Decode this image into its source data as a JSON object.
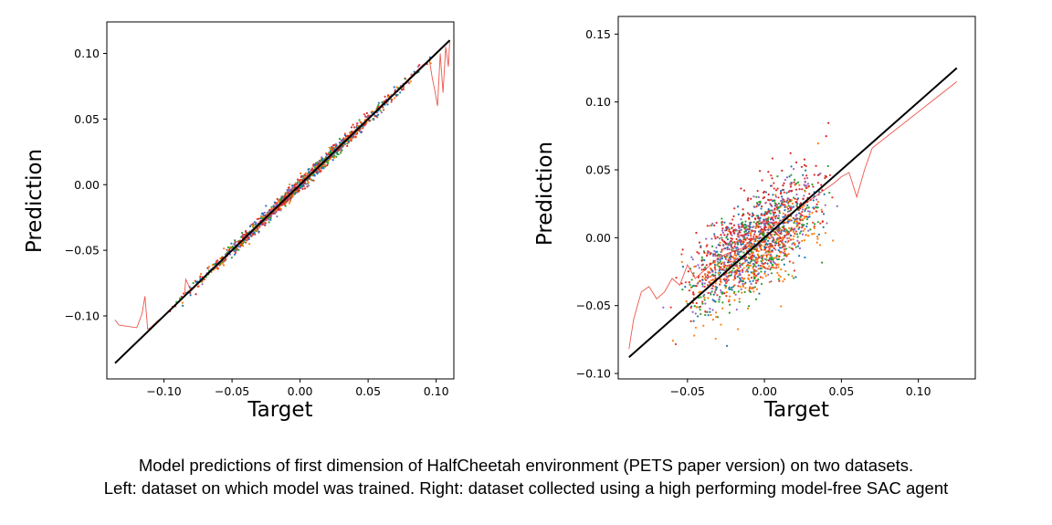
{
  "chart_data": [
    {
      "type": "scatter",
      "panel": "left",
      "xlabel": "Target",
      "ylabel": "Prediction",
      "xlim": [
        -0.142,
        0.113
      ],
      "ylim": [
        -0.148,
        0.124
      ],
      "xticks": [
        -0.1,
        -0.05,
        0.0,
        0.05,
        0.1
      ],
      "xtick_labels": [
        "−0.10",
        "−0.05",
        "0.00",
        "0.05",
        "0.10"
      ],
      "yticks": [
        -0.1,
        -0.05,
        0.0,
        0.05,
        0.1
      ],
      "ytick_labels": [
        "−0.10",
        "−0.05",
        "0.00",
        "0.05",
        "0.10"
      ],
      "identity_line": {
        "x": [
          -0.136,
          0.11
        ],
        "y": [
          -0.136,
          0.11
        ],
        "color": "#000000"
      },
      "series_colors": [
        "#1f77b4",
        "#ff7f0e",
        "#2ca02c",
        "#d62728",
        "#9467bd",
        "#e8392b"
      ],
      "mean_prediction_line": {
        "name": "mean prediction",
        "color": "#e8392b",
        "x": [
          -0.136,
          -0.133,
          -0.12,
          -0.116,
          -0.114,
          -0.112,
          -0.11,
          -0.105,
          -0.1,
          -0.09,
          -0.085,
          -0.084,
          -0.08,
          -0.07,
          -0.06,
          -0.05,
          -0.04,
          -0.03,
          -0.02,
          -0.01,
          0.0,
          0.01,
          0.02,
          0.03,
          0.04,
          0.05,
          0.06,
          0.07,
          0.08,
          0.09,
          0.095,
          0.097,
          0.099,
          0.101,
          0.103,
          0.105,
          0.107,
          0.109,
          0.11
        ],
        "y": [
          -0.103,
          -0.107,
          -0.109,
          -0.098,
          -0.085,
          -0.11,
          -0.109,
          -0.104,
          -0.1,
          -0.09,
          -0.085,
          -0.072,
          -0.081,
          -0.07,
          -0.061,
          -0.05,
          -0.041,
          -0.03,
          -0.021,
          -0.011,
          0.0,
          0.011,
          0.02,
          0.031,
          0.041,
          0.05,
          0.061,
          0.07,
          0.081,
          0.091,
          0.095,
          0.082,
          0.072,
          0.06,
          0.1,
          0.07,
          0.105,
          0.09,
          0.11
        ]
      }
    },
    {
      "type": "scatter",
      "panel": "right",
      "xlabel": "Target",
      "ylabel": "Prediction",
      "xlim": [
        -0.095,
        0.137
      ],
      "ylim": [
        -0.104,
        0.163
      ],
      "xticks": [
        -0.05,
        0.0,
        0.05,
        0.1
      ],
      "xtick_labels": [
        "−0.05",
        "0.00",
        "0.05",
        "0.10"
      ],
      "yticks": [
        -0.1,
        -0.05,
        0.0,
        0.05,
        0.1,
        0.15
      ],
      "ytick_labels": [
        "−0.10",
        "−0.05",
        "0.00",
        "0.05",
        "0.10",
        "0.15"
      ],
      "identity_line": {
        "x": [
          -0.088,
          0.125
        ],
        "y": [
          -0.088,
          0.125
        ],
        "color": "#000000"
      },
      "series_colors": [
        "#1f77b4",
        "#ff7f0e",
        "#2ca02c",
        "#d62728",
        "#9467bd",
        "#e8392b"
      ],
      "mean_prediction_line": {
        "name": "mean prediction",
        "color": "#e8392b",
        "x": [
          -0.088,
          -0.085,
          -0.08,
          -0.075,
          -0.07,
          -0.065,
          -0.06,
          -0.055,
          -0.05,
          -0.045,
          -0.04,
          -0.035,
          -0.03,
          -0.025,
          -0.02,
          -0.015,
          -0.01,
          -0.005,
          0.0,
          0.005,
          0.01,
          0.015,
          0.02,
          0.025,
          0.03,
          0.035,
          0.04,
          0.045,
          0.05,
          0.055,
          0.06,
          0.065,
          0.07,
          0.125
        ],
        "y": [
          -0.082,
          -0.06,
          -0.04,
          -0.036,
          -0.045,
          -0.04,
          -0.03,
          -0.035,
          -0.02,
          -0.03,
          -0.025,
          -0.02,
          -0.015,
          -0.012,
          -0.01,
          -0.008,
          -0.003,
          0.0,
          0.005,
          0.008,
          0.012,
          0.016,
          0.02,
          0.024,
          0.028,
          0.032,
          0.036,
          0.04,
          0.045,
          0.048,
          0.03,
          0.05,
          0.066,
          0.115
        ]
      }
    }
  ],
  "caption": {
    "line1": "Model predictions of first dimension of HalfCheetah environment (PETS paper version) on two datasets.",
    "line2": "Left: dataset on which model was trained. Right: dataset collected using a high performing model-free SAC agent"
  }
}
